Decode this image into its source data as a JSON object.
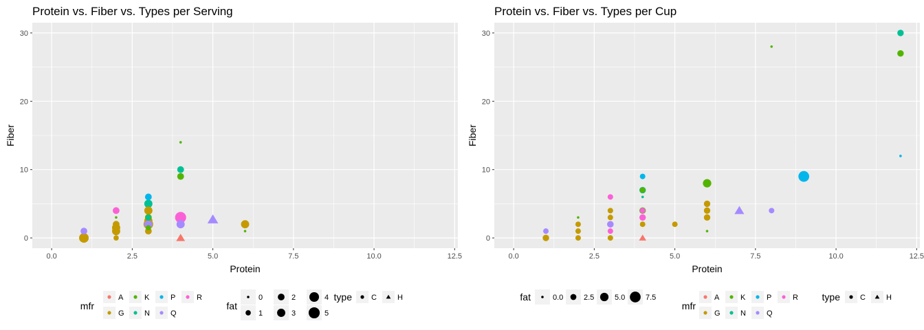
{
  "chart_data": [
    {
      "type": "scatter",
      "title": "Protein vs. Fiber vs. Types per Serving",
      "xlabel": "Protein",
      "ylabel": "Fiber",
      "xlim": [
        -0.6,
        12.6
      ],
      "ylim": [
        -1.5,
        31.5
      ],
      "xticks": [
        0,
        2.5,
        5,
        7.5,
        10,
        12.5
      ],
      "xtick_labels": [
        "0.0",
        "2.5",
        "5.0",
        "7.5",
        "10.0",
        "12.5"
      ],
      "yticks": [
        0,
        10,
        20,
        30
      ],
      "ytick_labels": [
        "0",
        "10",
        "20",
        "30"
      ],
      "grid": true,
      "legend_position": "bottom",
      "legends": [
        {
          "title": "mfr",
          "kind": "color",
          "rows": 2,
          "entries": [
            {
              "label": "A",
              "color": "#F8766D"
            },
            {
              "label": "G",
              "color": "#C49A00"
            },
            {
              "label": "K",
              "color": "#53B400"
            },
            {
              "label": "N",
              "color": "#00C094"
            },
            {
              "label": "P",
              "color": "#00B6EB"
            },
            {
              "label": "Q",
              "color": "#A58AFF"
            },
            {
              "label": "R",
              "color": "#FB61D7"
            }
          ]
        },
        {
          "title": "fat",
          "kind": "size",
          "rows": 2,
          "entries": [
            {
              "label": "0",
              "value": 0
            },
            {
              "label": "1",
              "value": 1
            },
            {
              "label": "2",
              "value": 2
            },
            {
              "label": "3",
              "value": 3
            },
            {
              "label": "4",
              "value": 4
            },
            {
              "label": "5",
              "value": 5
            }
          ]
        },
        {
          "title": "type",
          "kind": "shape",
          "rows": 1,
          "entries": [
            {
              "label": "C",
              "shape": "circle"
            },
            {
              "label": "H",
              "shape": "triangle"
            }
          ]
        }
      ],
      "points": [
        {
          "x": 1,
          "y": 0,
          "mfr": "G",
          "fat": 4,
          "type": "C"
        },
        {
          "x": 1,
          "y": 1,
          "mfr": "Q",
          "fat": 2,
          "type": "C"
        },
        {
          "x": 2,
          "y": 4,
          "mfr": "R",
          "fat": 2,
          "type": "C"
        },
        {
          "x": 2,
          "y": 3,
          "mfr": "K",
          "fat": 0,
          "type": "C"
        },
        {
          "x": 2,
          "y": 2,
          "mfr": "G",
          "fat": 2,
          "type": "C"
        },
        {
          "x": 2,
          "y": 1.5,
          "mfr": "G",
          "fat": 3,
          "type": "C"
        },
        {
          "x": 2,
          "y": 1,
          "mfr": "G",
          "fat": 3,
          "type": "C"
        },
        {
          "x": 2,
          "y": 0,
          "mfr": "G",
          "fat": 1,
          "type": "C"
        },
        {
          "x": 3,
          "y": 6,
          "mfr": "P",
          "fat": 2,
          "type": "C"
        },
        {
          "x": 3,
          "y": 5,
          "mfr": "N",
          "fat": 3,
          "type": "C"
        },
        {
          "x": 3,
          "y": 4,
          "mfr": "G",
          "fat": 3,
          "type": "C"
        },
        {
          "x": 3,
          "y": 3,
          "mfr": "K",
          "fat": 2,
          "type": "C"
        },
        {
          "x": 3,
          "y": 3,
          "mfr": "N",
          "fat": 1,
          "type": "C"
        },
        {
          "x": 3,
          "y": 2.5,
          "mfr": "G",
          "fat": 3,
          "type": "C"
        },
        {
          "x": 3,
          "y": 2,
          "mfr": "Q",
          "fat": 3,
          "type": "C"
        },
        {
          "x": 3,
          "y": 2,
          "mfr": "G",
          "fat": 4,
          "type": "C"
        },
        {
          "x": 3,
          "y": 1.5,
          "mfr": "K",
          "fat": 1,
          "type": "C"
        },
        {
          "x": 3,
          "y": 1,
          "mfr": "G",
          "fat": 2,
          "type": "C"
        },
        {
          "x": 4,
          "y": 14,
          "mfr": "K",
          "fat": 0,
          "type": "C"
        },
        {
          "x": 4,
          "y": 10,
          "mfr": "N",
          "fat": 2,
          "type": "C"
        },
        {
          "x": 4,
          "y": 9,
          "mfr": "K",
          "fat": 2,
          "type": "C"
        },
        {
          "x": 4,
          "y": 3,
          "mfr": "R",
          "fat": 5,
          "type": "C"
        },
        {
          "x": 4,
          "y": 2,
          "mfr": "Q",
          "fat": 3,
          "type": "C"
        },
        {
          "x": 4,
          "y": 0,
          "mfr": "A",
          "fat": 2,
          "type": "H"
        },
        {
          "x": 5,
          "y": 2.7,
          "mfr": "Q",
          "fat": 3,
          "type": "H"
        },
        {
          "x": 6,
          "y": 2,
          "mfr": "G",
          "fat": 3,
          "type": "C"
        },
        {
          "x": 6,
          "y": 1,
          "mfr": "K",
          "fat": 0,
          "type": "C"
        }
      ]
    },
    {
      "type": "scatter",
      "title": "Protein vs. Fiber vs. Types per Cup",
      "xlabel": "Protein",
      "ylabel": "Fiber",
      "xlim": [
        -0.6,
        12.6
      ],
      "ylim": [
        -1.5,
        31.5
      ],
      "xticks": [
        0,
        2.5,
        5,
        7.5,
        10,
        12.5
      ],
      "xtick_labels": [
        "0.0",
        "2.5",
        "5.0",
        "7.5",
        "10.0",
        "12.5"
      ],
      "yticks": [
        0,
        10,
        20,
        30
      ],
      "ytick_labels": [
        "0",
        "10",
        "20",
        "30"
      ],
      "grid": true,
      "legend_position": "bottom",
      "legends": [
        {
          "title": "fat",
          "kind": "size",
          "rows": 1,
          "entries": [
            {
              "label": "0.0",
              "value": 0
            },
            {
              "label": "2.5",
              "value": 2.5
            },
            {
              "label": "5.0",
              "value": 5
            },
            {
              "label": "7.5",
              "value": 7.5
            }
          ]
        },
        {
          "title": "mfr",
          "kind": "color",
          "rows": 2,
          "entries": [
            {
              "label": "A",
              "color": "#F8766D"
            },
            {
              "label": "G",
              "color": "#C49A00"
            },
            {
              "label": "K",
              "color": "#53B400"
            },
            {
              "label": "N",
              "color": "#00C094"
            },
            {
              "label": "P",
              "color": "#00B6EB"
            },
            {
              "label": "Q",
              "color": "#A58AFF"
            },
            {
              "label": "R",
              "color": "#FB61D7"
            }
          ]
        },
        {
          "title": "type",
          "kind": "shape",
          "rows": 1,
          "entries": [
            {
              "label": "C",
              "shape": "circle"
            },
            {
              "label": "H",
              "shape": "triangle"
            }
          ]
        }
      ],
      "points": [
        {
          "x": 1,
          "y": 0,
          "mfr": "G",
          "fat": 3,
          "type": "C"
        },
        {
          "x": 1,
          "y": 1,
          "mfr": "Q",
          "fat": 2,
          "type": "C"
        },
        {
          "x": 2,
          "y": 3,
          "mfr": "K",
          "fat": 0,
          "type": "C"
        },
        {
          "x": 2,
          "y": 2,
          "mfr": "G",
          "fat": 2,
          "type": "C"
        },
        {
          "x": 2,
          "y": 1,
          "mfr": "G",
          "fat": 2,
          "type": "C"
        },
        {
          "x": 2,
          "y": 0,
          "mfr": "G",
          "fat": 2,
          "type": "C"
        },
        {
          "x": 3,
          "y": 6,
          "mfr": "R",
          "fat": 2,
          "type": "C"
        },
        {
          "x": 3,
          "y": 4,
          "mfr": "G",
          "fat": 2,
          "type": "C"
        },
        {
          "x": 3,
          "y": 3,
          "mfr": "G",
          "fat": 2,
          "type": "C"
        },
        {
          "x": 3,
          "y": 2,
          "mfr": "R",
          "fat": 3,
          "type": "C"
        },
        {
          "x": 3,
          "y": 2,
          "mfr": "Q",
          "fat": 3,
          "type": "C"
        },
        {
          "x": 3,
          "y": 1,
          "mfr": "R",
          "fat": 2,
          "type": "C"
        },
        {
          "x": 3,
          "y": 0,
          "mfr": "G",
          "fat": 2,
          "type": "C"
        },
        {
          "x": 4,
          "y": 9,
          "mfr": "P",
          "fat": 2,
          "type": "C"
        },
        {
          "x": 4,
          "y": 7,
          "mfr": "N",
          "fat": 3,
          "type": "C"
        },
        {
          "x": 4,
          "y": 7,
          "mfr": "K",
          "fat": 2,
          "type": "C"
        },
        {
          "x": 4,
          "y": 6,
          "mfr": "N",
          "fat": 0,
          "type": "C"
        },
        {
          "x": 4,
          "y": 4,
          "mfr": "K",
          "fat": 3,
          "type": "C"
        },
        {
          "x": 4,
          "y": 4,
          "mfr": "R",
          "fat": 2,
          "type": "C"
        },
        {
          "x": 4,
          "y": 3,
          "mfr": "R",
          "fat": 3,
          "type": "C"
        },
        {
          "x": 4,
          "y": 2,
          "mfr": "G",
          "fat": 2,
          "type": "C"
        },
        {
          "x": 4,
          "y": 0,
          "mfr": "A",
          "fat": 2,
          "type": "H"
        },
        {
          "x": 5,
          "y": 2,
          "mfr": "G",
          "fat": 2,
          "type": "C"
        },
        {
          "x": 6,
          "y": 8,
          "mfr": "K",
          "fat": 5,
          "type": "C"
        },
        {
          "x": 6,
          "y": 5,
          "mfr": "G",
          "fat": 3,
          "type": "C"
        },
        {
          "x": 6,
          "y": 4,
          "mfr": "G",
          "fat": 3,
          "type": "C"
        },
        {
          "x": 6,
          "y": 3,
          "mfr": "G",
          "fat": 3,
          "type": "C"
        },
        {
          "x": 6,
          "y": 1,
          "mfr": "K",
          "fat": 0,
          "type": "C"
        },
        {
          "x": 7,
          "y": 4,
          "mfr": "Q",
          "fat": 4,
          "type": "H"
        },
        {
          "x": 8,
          "y": 28,
          "mfr": "K",
          "fat": 0,
          "type": "C"
        },
        {
          "x": 8,
          "y": 4,
          "mfr": "Q",
          "fat": 2,
          "type": "C"
        },
        {
          "x": 9,
          "y": 9,
          "mfr": "P",
          "fat": 7.5,
          "type": "C"
        },
        {
          "x": 12,
          "y": 30,
          "mfr": "N",
          "fat": 3,
          "type": "C"
        },
        {
          "x": 12,
          "y": 27,
          "mfr": "K",
          "fat": 3,
          "type": "C"
        },
        {
          "x": 12,
          "y": 12,
          "mfr": "P",
          "fat": 0,
          "type": "C"
        }
      ]
    }
  ]
}
